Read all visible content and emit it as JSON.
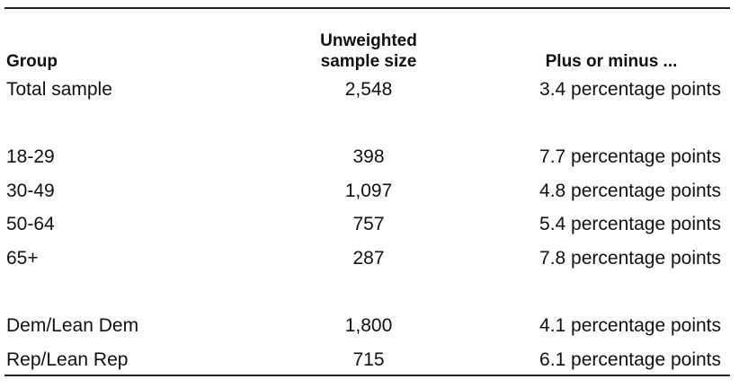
{
  "table": {
    "header": [
      "Group",
      "Unweighted sample size",
      "Plus or minus ..."
    ],
    "groups": [
      [
        [
          "Total sample",
          "2,548",
          "3.4 percentage points"
        ]
      ],
      [
        [
          "18-29",
          "398",
          "7.7 percentage points"
        ],
        [
          "30-49",
          "1,097",
          "4.8 percentage points"
        ],
        [
          "50-64",
          "757",
          "5.4 percentage points"
        ],
        [
          "65+",
          "287",
          "7.8 percentage points"
        ]
      ],
      [
        [
          "Dem/Lean Dem",
          "1,800",
          "4.1 percentage points"
        ],
        [
          "Rep/Lean Rep",
          "715",
          "6.1 percentage points"
        ]
      ]
    ]
  }
}
